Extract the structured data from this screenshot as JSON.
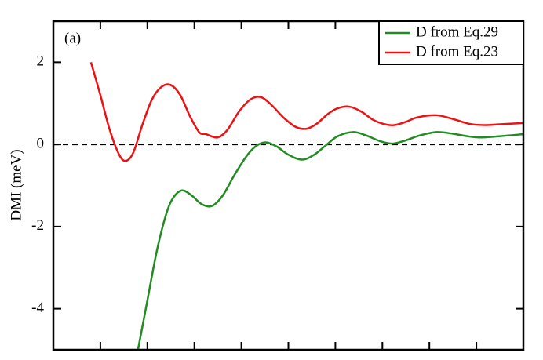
{
  "chart_data": {
    "type": "line",
    "y_label": "DMI (meV)",
    "annotation": "(a)",
    "xlim": [
      0,
      10
    ],
    "xticks": [
      1,
      2,
      3,
      4,
      5,
      6,
      7,
      8,
      9
    ],
    "ylim": [
      -5,
      3
    ],
    "yticks": [
      2,
      0,
      -2,
      -4
    ],
    "hline": 0,
    "legend": "upper right",
    "series": [
      {
        "name": "D from Eq.29",
        "color": "#228b22",
        "x": [
          1.8,
          2.0,
          2.2,
          2.4,
          2.55,
          2.74,
          2.95,
          3.15,
          3.37,
          3.6,
          3.85,
          4.1,
          4.3,
          4.51,
          4.75,
          5.0,
          5.29,
          5.55,
          5.8,
          6.05,
          6.38,
          6.65,
          6.95,
          7.21,
          7.5,
          7.8,
          8.16,
          8.5,
          8.8,
          9.08,
          9.5,
          10
        ],
        "values": [
          -5.0,
          -3.8,
          -2.6,
          -1.7,
          -1.3,
          -1.12,
          -1.25,
          -1.45,
          -1.5,
          -1.25,
          -0.75,
          -0.3,
          -0.05,
          0.05,
          -0.05,
          -0.25,
          -0.37,
          -0.25,
          -0.02,
          0.2,
          0.3,
          0.22,
          0.08,
          0.02,
          0.1,
          0.22,
          0.3,
          0.26,
          0.2,
          0.17,
          0.2,
          0.25
        ]
      },
      {
        "name": "D from Eq.23",
        "color": "#ee1111",
        "x": [
          0.8,
          1.0,
          1.2,
          1.4,
          1.54,
          1.7,
          1.9,
          2.1,
          2.3,
          2.49,
          2.7,
          2.9,
          3.1,
          3.25,
          3.49,
          3.7,
          3.95,
          4.2,
          4.42,
          4.65,
          4.9,
          5.15,
          5.38,
          5.6,
          5.85,
          6.05,
          6.29,
          6.55,
          6.8,
          7.05,
          7.26,
          7.5,
          7.75,
          8.15,
          8.5,
          8.85,
          9.17,
          9.5,
          10
        ],
        "values": [
          2.0,
          1.2,
          0.35,
          -0.25,
          -0.4,
          -0.2,
          0.5,
          1.1,
          1.4,
          1.45,
          1.2,
          0.7,
          0.3,
          0.25,
          0.17,
          0.35,
          0.8,
          1.1,
          1.15,
          0.95,
          0.65,
          0.43,
          0.38,
          0.5,
          0.75,
          0.88,
          0.92,
          0.8,
          0.6,
          0.49,
          0.47,
          0.55,
          0.66,
          0.71,
          0.62,
          0.5,
          0.47,
          0.49,
          0.52
        ]
      }
    ]
  }
}
